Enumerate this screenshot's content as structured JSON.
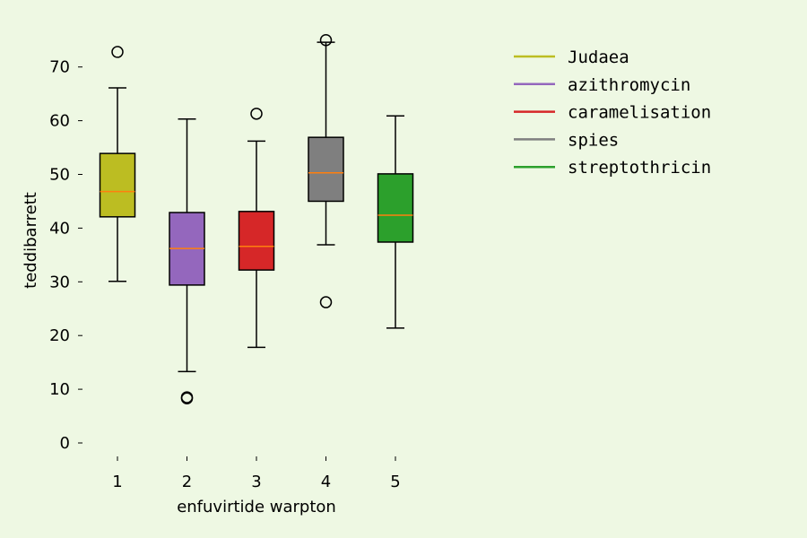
{
  "chart_data": {
    "type": "boxplot",
    "title": "",
    "xlabel": "enfuvirtide warpton",
    "ylabel": "teddibarrett",
    "ylim": [
      -3,
      77
    ],
    "yticks": [
      0,
      10,
      20,
      30,
      40,
      50,
      60,
      70
    ],
    "categories": [
      "1",
      "2",
      "3",
      "4",
      "5"
    ],
    "grid": false,
    "legend_position": "top-right",
    "median_color": "#ff7f0e",
    "series": [
      {
        "name": "Judaea",
        "color": "#bcbd22",
        "whisker_low": 30.1,
        "q1": 42.1,
        "median": 46.8,
        "q3": 53.9,
        "whisker_high": 66.1,
        "outliers": [
          72.8
        ]
      },
      {
        "name": "azithromycin",
        "color": "#9467bd",
        "whisker_low": 13.3,
        "q1": 29.4,
        "median": 36.2,
        "q3": 42.9,
        "whisker_high": 60.3,
        "outliers": [
          8.5,
          8.3
        ]
      },
      {
        "name": "caramelisation",
        "color": "#d62728",
        "whisker_low": 17.8,
        "q1": 32.2,
        "median": 36.6,
        "q3": 43.1,
        "whisker_high": 56.2,
        "outliers": [
          61.3
        ]
      },
      {
        "name": "spies",
        "color": "#7f7f7f",
        "whisker_low": 36.9,
        "q1": 45.0,
        "median": 50.3,
        "q3": 56.9,
        "whisker_high": 74.6,
        "outliers": [
          26.2,
          75.0
        ]
      },
      {
        "name": "streptothricin",
        "color": "#2ca02c",
        "whisker_low": 21.4,
        "q1": 37.4,
        "median": 42.4,
        "q3": 50.1,
        "whisker_high": 60.9,
        "outliers": []
      }
    ]
  }
}
